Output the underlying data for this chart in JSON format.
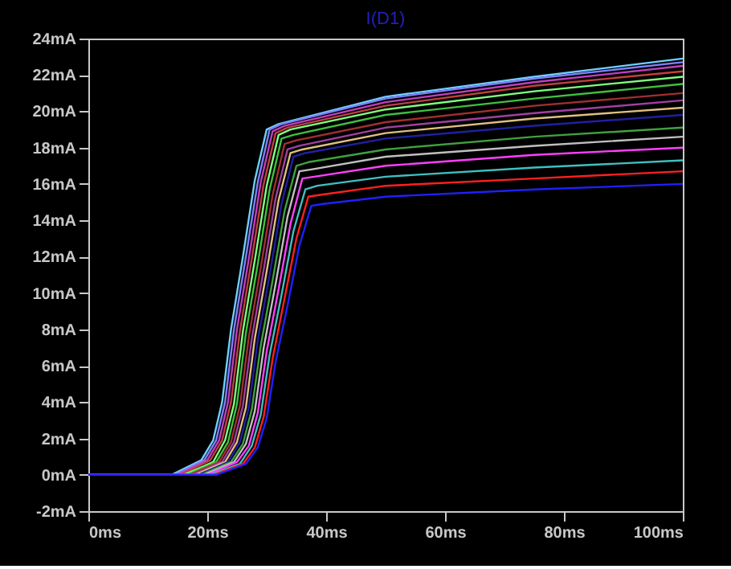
{
  "chart_data": {
    "type": "line",
    "title": "I(D1)",
    "xlim": [
      0,
      100
    ],
    "ylim": [
      -2,
      24
    ],
    "xticks": [
      {
        "value": 0,
        "label": "0ms"
      },
      {
        "value": 20,
        "label": "20ms"
      },
      {
        "value": 40,
        "label": "40ms"
      },
      {
        "value": 60,
        "label": "60ms"
      },
      {
        "value": 80,
        "label": "80ms"
      },
      {
        "value": 100,
        "label": "100ms"
      }
    ],
    "yticks": [
      {
        "value": -2,
        "label": "-2mA"
      },
      {
        "value": 0,
        "label": "0mA"
      },
      {
        "value": 2,
        "label": "2mA"
      },
      {
        "value": 4,
        "label": "4mA"
      },
      {
        "value": 6,
        "label": "6mA"
      },
      {
        "value": 8,
        "label": "8mA"
      },
      {
        "value": 10,
        "label": "10mA"
      },
      {
        "value": 12,
        "label": "12mA"
      },
      {
        "value": 14,
        "label": "14mA"
      },
      {
        "value": 16,
        "label": "16mA"
      },
      {
        "value": 18,
        "label": "18mA"
      },
      {
        "value": 20,
        "label": "20mA"
      },
      {
        "value": 22,
        "label": "22mA"
      },
      {
        "value": 24,
        "label": "24mA"
      }
    ],
    "grid": false,
    "marker": "none",
    "line_style": "solid",
    "series": [
      {
        "color": "#6fd0ff",
        "x": [
          0,
          14,
          19,
          21,
          22.5,
          24,
          26,
          28,
          30,
          32,
          50,
          75,
          100
        ],
        "values": [
          0,
          0,
          0.8,
          1.9,
          4.0,
          8.0,
          12.0,
          16.2,
          19.0,
          19.3,
          20.8,
          21.9,
          22.9
        ]
      },
      {
        "color": "#8080ff",
        "x": [
          0,
          14.5,
          19.5,
          21.5,
          23,
          24.5,
          26.5,
          28.5,
          30.5,
          32.5,
          50,
          75,
          100
        ],
        "values": [
          0,
          0,
          0.8,
          1.9,
          4.0,
          8.0,
          12.0,
          16.1,
          19.0,
          19.3,
          20.7,
          21.8,
          22.7
        ]
      },
      {
        "color": "#c040c0",
        "x": [
          0,
          15,
          20,
          22,
          23.5,
          25,
          27,
          29,
          31,
          33,
          50,
          75,
          100
        ],
        "values": [
          0,
          0,
          0.8,
          1.9,
          4.0,
          8.0,
          11.9,
          16.1,
          18.9,
          19.2,
          20.5,
          21.6,
          22.5
        ]
      },
      {
        "color": "#c04040",
        "x": [
          0,
          15.5,
          20.5,
          22.5,
          24,
          25.5,
          27.5,
          29.5,
          31.5,
          33.5,
          50,
          75,
          100
        ],
        "values": [
          0,
          0,
          0.8,
          1.9,
          4.0,
          7.9,
          11.9,
          16.0,
          18.8,
          19.1,
          20.3,
          21.4,
          22.2
        ]
      },
      {
        "color": "#80ff80",
        "x": [
          0,
          16,
          21,
          23,
          24.5,
          26,
          28,
          30,
          32,
          34,
          50,
          75,
          100
        ],
        "values": [
          0,
          0,
          0.7,
          1.9,
          3.9,
          7.9,
          11.8,
          15.9,
          18.7,
          19.0,
          20.1,
          21.1,
          21.9
        ]
      },
      {
        "color": "#40c040",
        "x": [
          0,
          16.5,
          21.5,
          23.5,
          25,
          26.5,
          28.5,
          30.5,
          32.5,
          34.5,
          50,
          75,
          100
        ],
        "values": [
          0,
          0,
          0.7,
          1.8,
          3.9,
          7.8,
          11.6,
          15.7,
          18.5,
          18.7,
          19.8,
          20.7,
          21.5
        ]
      },
      {
        "color": "#a03030",
        "x": [
          0,
          17,
          22,
          24,
          25.5,
          27,
          29,
          31,
          33,
          35,
          50,
          75,
          100
        ],
        "values": [
          0,
          0,
          0.7,
          1.8,
          3.8,
          7.6,
          11.4,
          15.4,
          18.2,
          18.4,
          19.4,
          20.3,
          21.0
        ]
      },
      {
        "color": "#a040a0",
        "x": [
          0,
          17.5,
          22.5,
          24.5,
          26,
          27.5,
          29.5,
          31.5,
          33.5,
          35.5,
          50,
          75,
          100
        ],
        "values": [
          0,
          0,
          0.7,
          1.8,
          3.8,
          7.5,
          11.3,
          15.2,
          17.9,
          18.1,
          19.1,
          19.9,
          20.6
        ]
      },
      {
        "color": "#e0c080",
        "x": [
          0,
          18,
          23,
          25,
          26.5,
          28,
          30,
          32,
          34,
          36,
          50,
          75,
          100
        ],
        "values": [
          0,
          0,
          0.7,
          1.8,
          3.7,
          7.5,
          11.2,
          15.1,
          17.7,
          17.9,
          18.8,
          19.6,
          20.2
        ]
      },
      {
        "color": "#2020a0",
        "x": [
          0,
          18.5,
          23.5,
          25.5,
          27,
          28.5,
          30.5,
          32.5,
          34.5,
          36.5,
          50,
          75,
          100
        ],
        "values": [
          0,
          0,
          0.7,
          1.8,
          3.7,
          7.4,
          11.0,
          14.9,
          17.5,
          17.7,
          18.5,
          19.2,
          19.8
        ]
      },
      {
        "color": "#40a040",
        "x": [
          0,
          19,
          24,
          26,
          27.5,
          29,
          31,
          33,
          35,
          37,
          50,
          75,
          100
        ],
        "values": [
          0,
          0,
          0.7,
          1.7,
          3.6,
          7.1,
          10.7,
          14.5,
          17.0,
          17.2,
          17.9,
          18.6,
          19.1
        ]
      },
      {
        "color": "#c0c0c0",
        "x": [
          0,
          19.5,
          24.5,
          26.5,
          28,
          29.5,
          31.5,
          33.5,
          35.5,
          37.5,
          50,
          75,
          100
        ],
        "values": [
          0,
          0,
          0.7,
          1.7,
          3.5,
          7.0,
          10.5,
          14.2,
          16.7,
          16.8,
          17.5,
          18.1,
          18.6
        ]
      },
      {
        "color": "#ff40ff",
        "x": [
          0,
          20,
          25,
          27,
          28.5,
          30,
          32,
          34,
          36,
          38,
          50,
          75,
          100
        ],
        "values": [
          0,
          0,
          0.7,
          1.6,
          3.4,
          6.8,
          10.2,
          13.8,
          16.3,
          16.4,
          17.0,
          17.6,
          18.0
        ]
      },
      {
        "color": "#40c0c0",
        "x": [
          0,
          20.5,
          25.5,
          27.5,
          29,
          30.5,
          32.5,
          34.5,
          36.5,
          38.5,
          50,
          75,
          100
        ],
        "values": [
          0,
          0,
          0.6,
          1.6,
          3.3,
          6.6,
          9.9,
          13.4,
          15.7,
          15.9,
          16.4,
          16.9,
          17.3
        ]
      },
      {
        "color": "#ff2020",
        "x": [
          0,
          21,
          26,
          28,
          29.5,
          31,
          33,
          35,
          37,
          39,
          50,
          75,
          100
        ],
        "values": [
          0,
          0,
          0.6,
          1.5,
          3.2,
          6.4,
          9.7,
          13.0,
          15.3,
          15.4,
          15.9,
          16.3,
          16.7
        ]
      },
      {
        "color": "#2020ff",
        "x": [
          0,
          21.5,
          26.5,
          28.5,
          30,
          31.5,
          33.5,
          35.5,
          37.5,
          39.5,
          50,
          75,
          100
        ],
        "values": [
          0,
          0,
          0.6,
          1.5,
          3.1,
          6.2,
          9.3,
          12.6,
          14.8,
          14.9,
          15.3,
          15.7,
          16.0
        ]
      }
    ]
  }
}
